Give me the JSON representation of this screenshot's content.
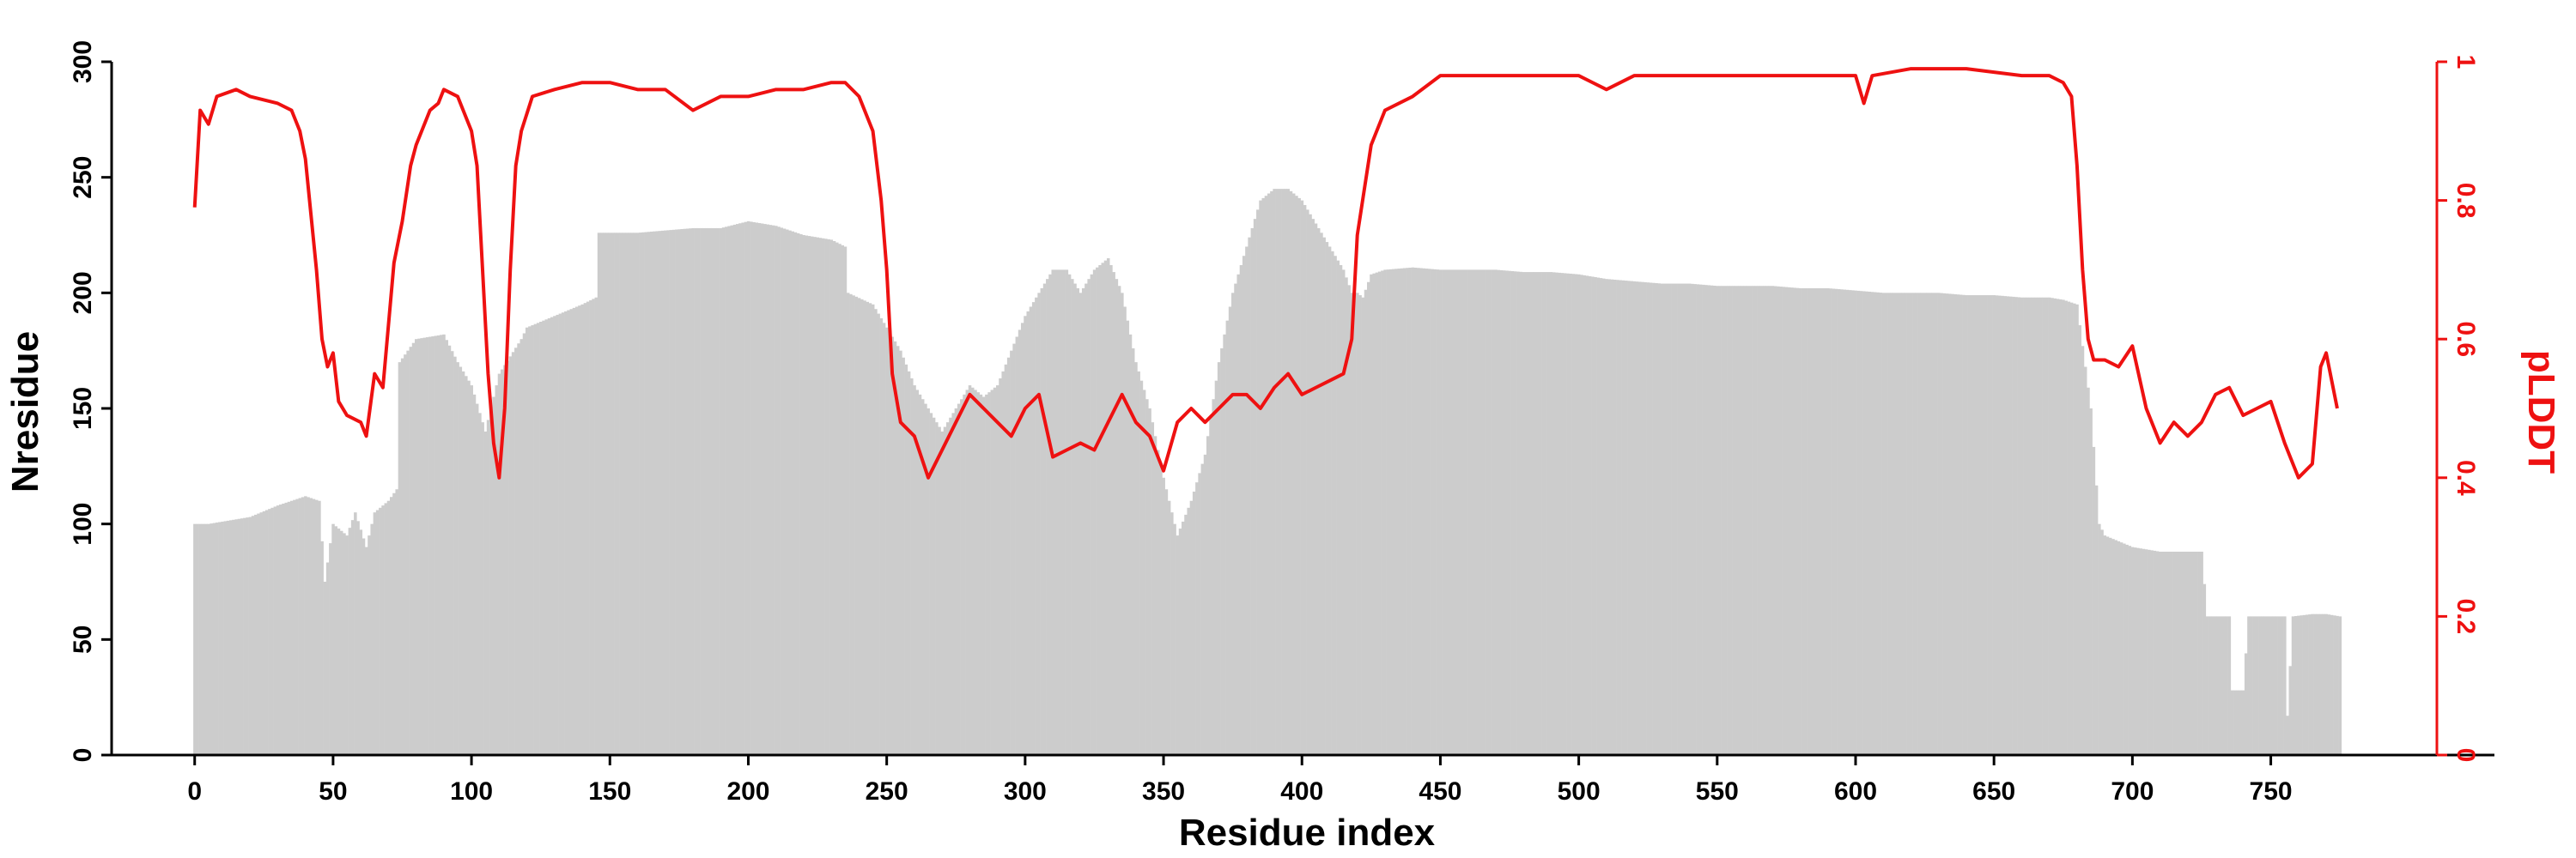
{
  "chart_data": {
    "type": "bar+line",
    "title": "",
    "xlabel": "Residue index",
    "ylabel_left": "Nresidue",
    "ylabel_right": "pLDDT",
    "xlim": [
      -30,
      810
    ],
    "ylim_left": [
      0,
      300
    ],
    "ylim_right": [
      0,
      1
    ],
    "x_ticks": [
      0,
      50,
      100,
      150,
      200,
      250,
      300,
      350,
      400,
      450,
      500,
      550,
      600,
      650,
      700,
      750
    ],
    "x_tick_labels": [
      "0",
      "50",
      "100",
      "150",
      "200",
      "250",
      "300",
      "350",
      "400",
      "450",
      "500",
      "550",
      "600",
      "650",
      "700",
      "750"
    ],
    "y_left_ticks": [
      0,
      50,
      100,
      150,
      200,
      250,
      300
    ],
    "y_left_tick_labels": [
      "0",
      "50",
      "100",
      "150",
      "200",
      "250",
      "300"
    ],
    "y_right_ticks": [
      0,
      0.2,
      0.4,
      0.6,
      0.8,
      1
    ],
    "y_right_tick_labels": [
      "0",
      "0.2",
      "0.4",
      "0.6",
      "0.8",
      "1"
    ],
    "colors": {
      "bars": "#cccccc",
      "line": "#ee1111",
      "axis_left": "#000000",
      "axis_right": "#ee1111"
    },
    "grid": false,
    "legend": "none",
    "series": [
      {
        "kind": "bar",
        "axis": "left",
        "profile": [
          [
            0,
            100
          ],
          [
            5,
            100
          ],
          [
            10,
            101
          ],
          [
            20,
            103
          ],
          [
            30,
            108
          ],
          [
            40,
            112
          ],
          [
            45,
            110
          ],
          [
            47,
            75
          ],
          [
            50,
            100
          ],
          [
            55,
            95
          ],
          [
            58,
            105
          ],
          [
            62,
            90
          ],
          [
            65,
            105
          ],
          [
            70,
            110
          ],
          [
            73,
            115
          ],
          [
            74,
            170
          ],
          [
            80,
            180
          ],
          [
            90,
            182
          ],
          [
            95,
            170
          ],
          [
            100,
            160
          ],
          [
            105,
            140
          ],
          [
            110,
            165
          ],
          [
            118,
            180
          ],
          [
            120,
            185
          ],
          [
            130,
            190
          ],
          [
            140,
            195
          ],
          [
            145,
            198
          ],
          [
            146,
            226
          ],
          [
            160,
            226
          ],
          [
            170,
            227
          ],
          [
            180,
            228
          ],
          [
            190,
            228
          ],
          [
            200,
            231
          ],
          [
            210,
            229
          ],
          [
            220,
            225
          ],
          [
            230,
            223
          ],
          [
            235,
            220
          ],
          [
            236,
            200
          ],
          [
            245,
            195
          ],
          [
            250,
            185
          ],
          [
            255,
            175
          ],
          [
            260,
            160
          ],
          [
            265,
            150
          ],
          [
            270,
            140
          ],
          [
            275,
            150
          ],
          [
            280,
            160
          ],
          [
            285,
            155
          ],
          [
            290,
            160
          ],
          [
            295,
            175
          ],
          [
            300,
            190
          ],
          [
            305,
            200
          ],
          [
            310,
            210
          ],
          [
            315,
            210
          ],
          [
            320,
            200
          ],
          [
            325,
            210
          ],
          [
            330,
            215
          ],
          [
            335,
            200
          ],
          [
            340,
            170
          ],
          [
            345,
            150
          ],
          [
            350,
            120
          ],
          [
            355,
            95
          ],
          [
            360,
            110
          ],
          [
            365,
            130
          ],
          [
            370,
            170
          ],
          [
            375,
            200
          ],
          [
            380,
            220
          ],
          [
            385,
            240
          ],
          [
            390,
            245
          ],
          [
            395,
            245
          ],
          [
            400,
            240
          ],
          [
            405,
            230
          ],
          [
            410,
            220
          ],
          [
            415,
            210
          ],
          [
            418,
            200
          ],
          [
            420,
            200
          ],
          [
            422,
            198
          ],
          [
            425,
            208
          ],
          [
            430,
            210
          ],
          [
            440,
            211
          ],
          [
            450,
            210
          ],
          [
            460,
            210
          ],
          [
            470,
            210
          ],
          [
            480,
            209
          ],
          [
            490,
            209
          ],
          [
            500,
            208
          ],
          [
            510,
            206
          ],
          [
            520,
            205
          ],
          [
            530,
            204
          ],
          [
            540,
            204
          ],
          [
            550,
            203
          ],
          [
            560,
            203
          ],
          [
            570,
            203
          ],
          [
            580,
            202
          ],
          [
            590,
            202
          ],
          [
            600,
            201
          ],
          [
            610,
            200
          ],
          [
            620,
            200
          ],
          [
            630,
            200
          ],
          [
            640,
            199
          ],
          [
            650,
            199
          ],
          [
            660,
            198
          ],
          [
            670,
            198
          ],
          [
            675,
            197
          ],
          [
            680,
            195
          ],
          [
            685,
            150
          ],
          [
            688,
            100
          ],
          [
            690,
            95
          ],
          [
            700,
            90
          ],
          [
            710,
            88
          ],
          [
            720,
            88
          ],
          [
            725,
            88
          ],
          [
            727,
            60
          ],
          [
            730,
            60
          ],
          [
            735,
            60
          ],
          [
            736,
            28
          ],
          [
            740,
            28
          ],
          [
            742,
            60
          ],
          [
            750,
            60
          ],
          [
            755,
            60
          ],
          [
            756,
            17
          ],
          [
            758,
            60
          ],
          [
            765,
            61
          ],
          [
            770,
            61
          ],
          [
            775,
            60
          ]
        ]
      },
      {
        "kind": "line",
        "axis": "right",
        "name": "pLDDT",
        "profile": [
          [
            0,
            0.79
          ],
          [
            2,
            0.93
          ],
          [
            5,
            0.91
          ],
          [
            8,
            0.95
          ],
          [
            15,
            0.96
          ],
          [
            20,
            0.95
          ],
          [
            30,
            0.94
          ],
          [
            35,
            0.93
          ],
          [
            38,
            0.9
          ],
          [
            40,
            0.86
          ],
          [
            42,
            0.78
          ],
          [
            44,
            0.7
          ],
          [
            46,
            0.6
          ],
          [
            48,
            0.56
          ],
          [
            50,
            0.58
          ],
          [
            52,
            0.51
          ],
          [
            55,
            0.49
          ],
          [
            60,
            0.48
          ],
          [
            62,
            0.46
          ],
          [
            65,
            0.55
          ],
          [
            68,
            0.53
          ],
          [
            70,
            0.62
          ],
          [
            72,
            0.71
          ],
          [
            75,
            0.77
          ],
          [
            78,
            0.85
          ],
          [
            80,
            0.88
          ],
          [
            85,
            0.93
          ],
          [
            88,
            0.94
          ],
          [
            90,
            0.96
          ],
          [
            95,
            0.95
          ],
          [
            98,
            0.92
          ],
          [
            100,
            0.9
          ],
          [
            102,
            0.85
          ],
          [
            104,
            0.7
          ],
          [
            106,
            0.55
          ],
          [
            108,
            0.45
          ],
          [
            110,
            0.4
          ],
          [
            112,
            0.5
          ],
          [
            114,
            0.7
          ],
          [
            116,
            0.85
          ],
          [
            118,
            0.9
          ],
          [
            122,
            0.95
          ],
          [
            130,
            0.96
          ],
          [
            140,
            0.97
          ],
          [
            150,
            0.97
          ],
          [
            160,
            0.96
          ],
          [
            170,
            0.96
          ],
          [
            180,
            0.93
          ],
          [
            190,
            0.95
          ],
          [
            200,
            0.95
          ],
          [
            210,
            0.96
          ],
          [
            220,
            0.96
          ],
          [
            230,
            0.97
          ],
          [
            235,
            0.97
          ],
          [
            240,
            0.95
          ],
          [
            245,
            0.9
          ],
          [
            248,
            0.8
          ],
          [
            250,
            0.7
          ],
          [
            252,
            0.55
          ],
          [
            255,
            0.48
          ],
          [
            260,
            0.46
          ],
          [
            265,
            0.4
          ],
          [
            270,
            0.44
          ],
          [
            275,
            0.48
          ],
          [
            280,
            0.52
          ],
          [
            285,
            0.5
          ],
          [
            290,
            0.48
          ],
          [
            295,
            0.46
          ],
          [
            300,
            0.5
          ],
          [
            305,
            0.52
          ],
          [
            310,
            0.43
          ],
          [
            315,
            0.44
          ],
          [
            320,
            0.45
          ],
          [
            325,
            0.44
          ],
          [
            330,
            0.48
          ],
          [
            335,
            0.52
          ],
          [
            340,
            0.48
          ],
          [
            345,
            0.46
          ],
          [
            350,
            0.41
          ],
          [
            355,
            0.48
          ],
          [
            360,
            0.5
          ],
          [
            365,
            0.48
          ],
          [
            370,
            0.5
          ],
          [
            375,
            0.52
          ],
          [
            380,
            0.52
          ],
          [
            385,
            0.5
          ],
          [
            390,
            0.53
          ],
          [
            395,
            0.55
          ],
          [
            400,
            0.52
          ],
          [
            405,
            0.53
          ],
          [
            410,
            0.54
          ],
          [
            415,
            0.55
          ],
          [
            418,
            0.6
          ],
          [
            420,
            0.75
          ],
          [
            425,
            0.88
          ],
          [
            430,
            0.93
          ],
          [
            440,
            0.95
          ],
          [
            450,
            0.98
          ],
          [
            460,
            0.98
          ],
          [
            480,
            0.98
          ],
          [
            500,
            0.98
          ],
          [
            505,
            0.97
          ],
          [
            510,
            0.96
          ],
          [
            520,
            0.98
          ],
          [
            540,
            0.98
          ],
          [
            560,
            0.98
          ],
          [
            580,
            0.98
          ],
          [
            600,
            0.98
          ],
          [
            603,
            0.94
          ],
          [
            606,
            0.98
          ],
          [
            620,
            0.99
          ],
          [
            640,
            0.99
          ],
          [
            660,
            0.98
          ],
          [
            670,
            0.98
          ],
          [
            675,
            0.97
          ],
          [
            678,
            0.95
          ],
          [
            680,
            0.85
          ],
          [
            682,
            0.7
          ],
          [
            684,
            0.6
          ],
          [
            686,
            0.57
          ],
          [
            690,
            0.57
          ],
          [
            695,
            0.56
          ],
          [
            700,
            0.59
          ],
          [
            705,
            0.5
          ],
          [
            710,
            0.45
          ],
          [
            715,
            0.48
          ],
          [
            720,
            0.46
          ],
          [
            725,
            0.48
          ],
          [
            730,
            0.52
          ],
          [
            735,
            0.53
          ],
          [
            740,
            0.49
          ],
          [
            745,
            0.5
          ],
          [
            750,
            0.51
          ],
          [
            755,
            0.45
          ],
          [
            760,
            0.4
          ],
          [
            765,
            0.42
          ],
          [
            768,
            0.56
          ],
          [
            770,
            0.58
          ],
          [
            774,
            0.5
          ]
        ]
      }
    ]
  }
}
